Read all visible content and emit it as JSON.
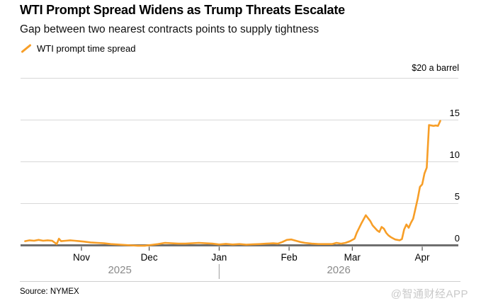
{
  "header": {
    "title": "WTI Prompt Spread Widens as Trump Threats Escalate",
    "subtitle": "Gap between two nearest contracts points to supply tightness"
  },
  "legend": {
    "series_label": "WTI prompt time spread"
  },
  "footer": {
    "source": "Source: NYMEX",
    "watermark": "@智通财经APP"
  },
  "colors": {
    "accent": "#F79E27",
    "grid": "#D8D8D8",
    "zero_axis": "#6F6F6F",
    "tick": "#2B2B2B",
    "year_label": "#8A8A8A",
    "year_separator": "#9B9B9B",
    "watermark": "#C9C9C9"
  },
  "chart_data": {
    "type": "line",
    "title": "WTI Prompt Spread Widens as Trump Threats Escalate",
    "subtitle": "Gap between two nearest contracts points to supply tightness",
    "unit_label": "$20 a barrel",
    "ylabel": "$ a barrel",
    "ylim": [
      0,
      20
    ],
    "grid": true,
    "legend_position": "top-left",
    "x_domain": [
      "2025-10-05",
      "2026-04-17"
    ],
    "year_separator_date": "2026-01-01",
    "y_ticks": [
      {
        "value": 0,
        "label": "0"
      },
      {
        "value": 5,
        "label": "5"
      },
      {
        "value": 10,
        "label": "10"
      },
      {
        "value": 15,
        "label": "15"
      },
      {
        "value": 20,
        "label": ""
      }
    ],
    "x_ticks": [
      {
        "date": "2025-11-01",
        "label": "Nov"
      },
      {
        "date": "2025-12-01",
        "label": "Dec"
      },
      {
        "date": "2026-01-01",
        "label": "Jan"
      },
      {
        "date": "2026-02-01",
        "label": "Feb"
      },
      {
        "date": "2026-03-01",
        "label": "Mar"
      },
      {
        "date": "2026-04-01",
        "label": "Apr"
      }
    ],
    "x_years": [
      {
        "label": "2025",
        "from": "2025-10-05",
        "to": "2026-01-01"
      },
      {
        "label": "2026",
        "from": "2026-01-01",
        "to": "2026-04-17"
      }
    ],
    "series": [
      {
        "name": "WTI prompt time spread",
        "color": "#F79E27",
        "points": [
          [
            "2025-10-07",
            0.5
          ],
          [
            "2025-10-09",
            0.6
          ],
          [
            "2025-10-11",
            0.55
          ],
          [
            "2025-10-13",
            0.65
          ],
          [
            "2025-10-15",
            0.55
          ],
          [
            "2025-10-17",
            0.6
          ],
          [
            "2025-10-19",
            0.55
          ],
          [
            "2025-10-21",
            0.15
          ],
          [
            "2025-10-22",
            0.8
          ],
          [
            "2025-10-23",
            0.5
          ],
          [
            "2025-10-25",
            0.55
          ],
          [
            "2025-10-27",
            0.6
          ],
          [
            "2025-10-29",
            0.55
          ],
          [
            "2025-10-31",
            0.5
          ],
          [
            "2025-11-02",
            0.45
          ],
          [
            "2025-11-05",
            0.35
          ],
          [
            "2025-11-08",
            0.3
          ],
          [
            "2025-11-11",
            0.25
          ],
          [
            "2025-11-14",
            0.15
          ],
          [
            "2025-11-17",
            0.1
          ],
          [
            "2025-11-20",
            0.05
          ],
          [
            "2025-11-23",
            0.0
          ],
          [
            "2025-11-26",
            -0.05
          ],
          [
            "2025-11-29",
            -0.05
          ],
          [
            "2025-12-02",
            0.05
          ],
          [
            "2025-12-05",
            0.15
          ],
          [
            "2025-12-08",
            0.3
          ],
          [
            "2025-12-11",
            0.25
          ],
          [
            "2025-12-14",
            0.2
          ],
          [
            "2025-12-17",
            0.2
          ],
          [
            "2025-12-20",
            0.25
          ],
          [
            "2025-12-23",
            0.3
          ],
          [
            "2025-12-26",
            0.25
          ],
          [
            "2025-12-29",
            0.2
          ],
          [
            "2026-01-01",
            0.1
          ],
          [
            "2026-01-04",
            0.18
          ],
          [
            "2026-01-07",
            0.1
          ],
          [
            "2026-01-10",
            0.15
          ],
          [
            "2026-01-13",
            0.08
          ],
          [
            "2026-01-16",
            0.12
          ],
          [
            "2026-01-19",
            0.15
          ],
          [
            "2026-01-22",
            0.2
          ],
          [
            "2026-01-25",
            0.25
          ],
          [
            "2026-01-27",
            0.2
          ],
          [
            "2026-01-29",
            0.4
          ],
          [
            "2026-01-31",
            0.65
          ],
          [
            "2026-02-02",
            0.7
          ],
          [
            "2026-02-04",
            0.55
          ],
          [
            "2026-02-06",
            0.4
          ],
          [
            "2026-02-08",
            0.3
          ],
          [
            "2026-02-11",
            0.2
          ],
          [
            "2026-02-14",
            0.15
          ],
          [
            "2026-02-17",
            0.15
          ],
          [
            "2026-02-20",
            0.15
          ],
          [
            "2026-02-22",
            0.3
          ],
          [
            "2026-02-24",
            0.2
          ],
          [
            "2026-02-26",
            0.3
          ],
          [
            "2026-02-28",
            0.5
          ],
          [
            "2026-03-02",
            0.8
          ],
          [
            "2026-03-03",
            1.5
          ],
          [
            "2026-03-05",
            2.6
          ],
          [
            "2026-03-07",
            3.6
          ],
          [
            "2026-03-09",
            2.9
          ],
          [
            "2026-03-10",
            2.4
          ],
          [
            "2026-03-11",
            2.1
          ],
          [
            "2026-03-12",
            1.8
          ],
          [
            "2026-03-13",
            1.6
          ],
          [
            "2026-03-14",
            2.2
          ],
          [
            "2026-03-15",
            2.0
          ],
          [
            "2026-03-16",
            1.5
          ],
          [
            "2026-03-17",
            1.2
          ],
          [
            "2026-03-18",
            1.0
          ],
          [
            "2026-03-19",
            0.85
          ],
          [
            "2026-03-20",
            0.7
          ],
          [
            "2026-03-21",
            0.65
          ],
          [
            "2026-03-22",
            0.6
          ],
          [
            "2026-03-23",
            0.75
          ],
          [
            "2026-03-24",
            1.9
          ],
          [
            "2026-03-25",
            2.5
          ],
          [
            "2026-03-26",
            2.1
          ],
          [
            "2026-03-27",
            2.7
          ],
          [
            "2026-03-28",
            3.2
          ],
          [
            "2026-03-29",
            4.4
          ],
          [
            "2026-03-30",
            5.6
          ],
          [
            "2026-03-31",
            7.0
          ],
          [
            "2026-04-01",
            7.3
          ],
          [
            "2026-04-02",
            8.6
          ],
          [
            "2026-04-03",
            9.3
          ],
          [
            "2026-04-04",
            14.4
          ],
          [
            "2026-04-05",
            14.35
          ],
          [
            "2026-04-06",
            14.3
          ],
          [
            "2026-04-07",
            14.35
          ],
          [
            "2026-04-08",
            14.3
          ],
          [
            "2026-04-09",
            14.9
          ]
        ]
      }
    ]
  }
}
